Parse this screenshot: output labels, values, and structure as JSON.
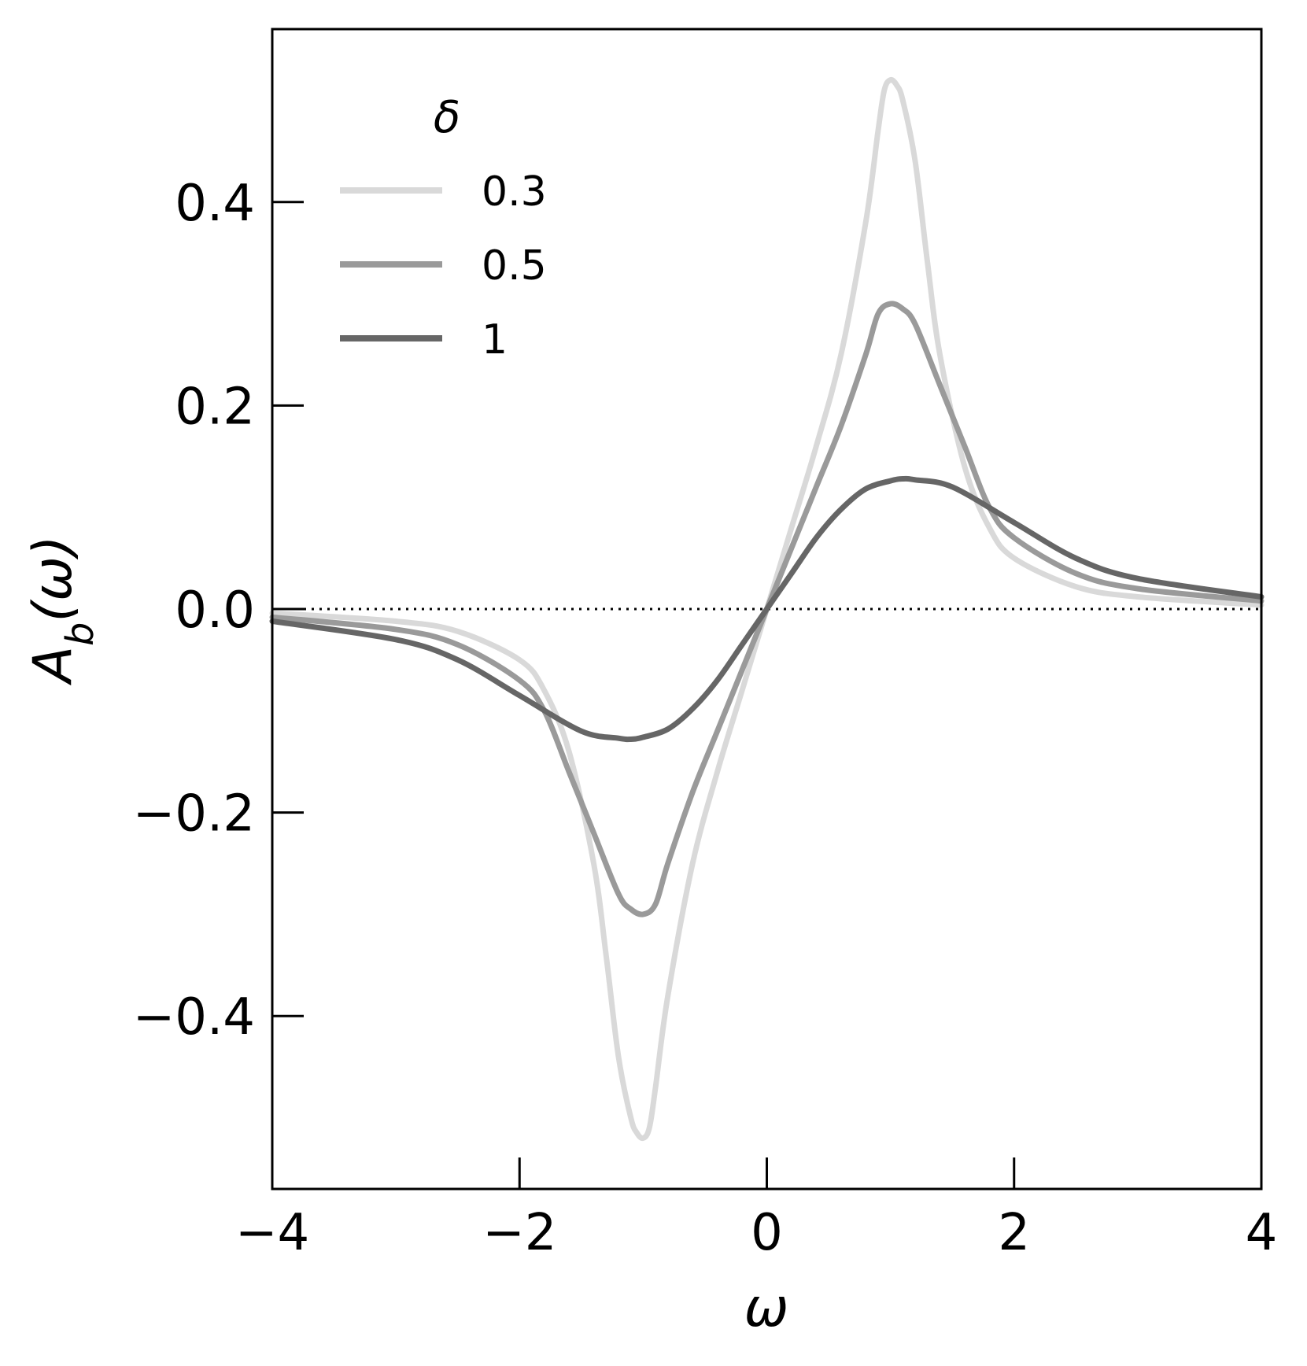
{
  "chart_data": {
    "type": "line",
    "title": "",
    "xlabel": "ω",
    "ylabel": "A_b(ω)",
    "xlim": [
      -4,
      4
    ],
    "ylim": [
      -0.57,
      0.57
    ],
    "xticks": [
      -4,
      -2,
      0,
      2,
      4
    ],
    "xtick_labels": [
      "−4",
      "−2",
      "0",
      "2",
      "4"
    ],
    "yticks": [
      -0.4,
      -0.2,
      0.0,
      0.2,
      0.4
    ],
    "ytick_labels": [
      "−0.4",
      "−0.2",
      "0.0",
      "0.2",
      "0.4"
    ],
    "grid": false,
    "legend": {
      "title": "δ",
      "placement": "top-left"
    },
    "reference_line": {
      "y": 0,
      "style": "dotted",
      "color": "#000000"
    },
    "series": [
      {
        "name": "0.3",
        "color": "#d9d9d9",
        "x": [
          -4.0,
          -3.0,
          -2.5,
          -2.0,
          -1.8,
          -1.6,
          -1.4,
          -1.3,
          -1.2,
          -1.1,
          -1.05,
          -1.0,
          -0.95,
          -0.9,
          -0.8,
          -0.6,
          -0.4,
          -0.2,
          0.0,
          0.2,
          0.4,
          0.6,
          0.8,
          0.9,
          0.95,
          1.0,
          1.05,
          1.1,
          1.2,
          1.3,
          1.4,
          1.6,
          1.8,
          2.0,
          2.5,
          3.0,
          4.0
        ],
        "y": [
          -0.004,
          -0.012,
          -0.022,
          -0.05,
          -0.08,
          -0.14,
          -0.25,
          -0.34,
          -0.44,
          -0.5,
          -0.515,
          -0.52,
          -0.51,
          -0.47,
          -0.38,
          -0.25,
          -0.16,
          -0.08,
          0.0,
          0.08,
          0.16,
          0.25,
          0.38,
          0.47,
          0.51,
          0.52,
          0.515,
          0.5,
          0.44,
          0.34,
          0.25,
          0.14,
          0.08,
          0.05,
          0.022,
          0.012,
          0.004
        ]
      },
      {
        "name": "0.5",
        "color": "#9a9a9a",
        "x": [
          -4.0,
          -3.0,
          -2.5,
          -2.0,
          -1.8,
          -1.6,
          -1.4,
          -1.2,
          -1.1,
          -1.0,
          -0.9,
          -0.8,
          -0.6,
          -0.4,
          -0.2,
          0.0,
          0.2,
          0.4,
          0.6,
          0.8,
          0.9,
          1.0,
          1.1,
          1.2,
          1.4,
          1.6,
          1.8,
          2.0,
          2.5,
          3.0,
          4.0
        ],
        "y": [
          -0.008,
          -0.02,
          -0.035,
          -0.07,
          -0.1,
          -0.16,
          -0.22,
          -0.28,
          -0.295,
          -0.3,
          -0.29,
          -0.25,
          -0.18,
          -0.12,
          -0.06,
          0.0,
          0.06,
          0.12,
          0.18,
          0.25,
          0.29,
          0.3,
          0.295,
          0.28,
          0.22,
          0.16,
          0.1,
          0.07,
          0.035,
          0.02,
          0.008
        ]
      },
      {
        "name": "1",
        "color": "#666666",
        "x": [
          -4.0,
          -3.0,
          -2.5,
          -2.0,
          -1.5,
          -1.2,
          -1.1,
          -1.0,
          -0.8,
          -0.6,
          -0.4,
          -0.2,
          0.0,
          0.2,
          0.4,
          0.6,
          0.8,
          1.0,
          1.1,
          1.2,
          1.5,
          2.0,
          2.5,
          3.0,
          4.0
        ],
        "y": [
          -0.012,
          -0.03,
          -0.05,
          -0.085,
          -0.12,
          -0.127,
          -0.128,
          -0.126,
          -0.118,
          -0.098,
          -0.07,
          -0.035,
          0.0,
          0.035,
          0.07,
          0.098,
          0.118,
          0.126,
          0.128,
          0.127,
          0.12,
          0.085,
          0.05,
          0.03,
          0.012
        ]
      }
    ]
  }
}
